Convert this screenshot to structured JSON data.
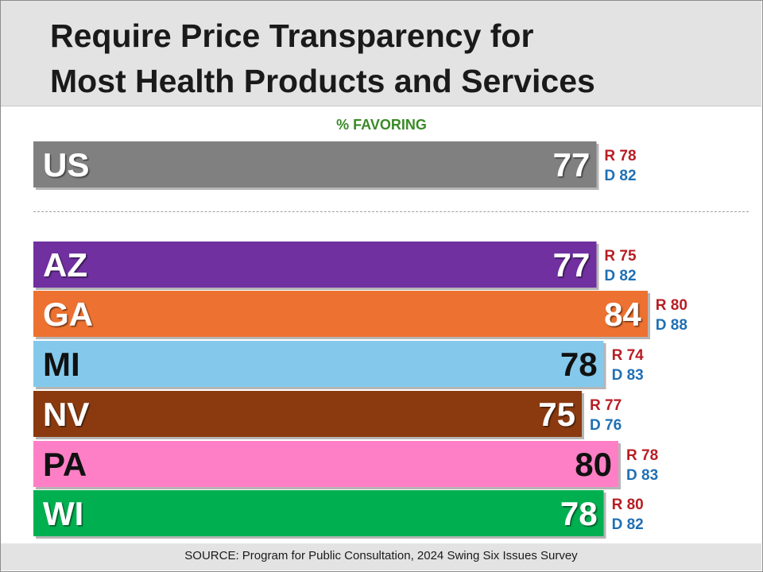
{
  "title_lines": [
    "Require Price Transparency for",
    "Most Health Products and Services"
  ],
  "subtitle": "% FAVORING",
  "source": "SOURCE: Program for Public Consultation, 2024 Swing Six Issues Survey",
  "colors": {
    "republican": "#b81d24",
    "democrat": "#1f6fb4",
    "us": "#808080",
    "AZ": "#7030a0",
    "GA": "#ed7130",
    "MI": "#84c9eb",
    "NV": "#8b3a10",
    "PA": "#ff7fc6",
    "WI": "#00b050"
  },
  "chart_data": {
    "type": "bar",
    "orientation": "horizontal",
    "value_label": "% FAVORING",
    "categories": [
      "US",
      "AZ",
      "GA",
      "MI",
      "NV",
      "PA",
      "WI"
    ],
    "values": [
      77,
      77,
      84,
      78,
      75,
      80,
      78
    ],
    "series": [
      {
        "name": "R",
        "values": [
          78,
          75,
          80,
          74,
          77,
          78,
          80
        ]
      },
      {
        "name": "D",
        "values": [
          82,
          82,
          88,
          83,
          76,
          83,
          82
        ]
      }
    ]
  }
}
